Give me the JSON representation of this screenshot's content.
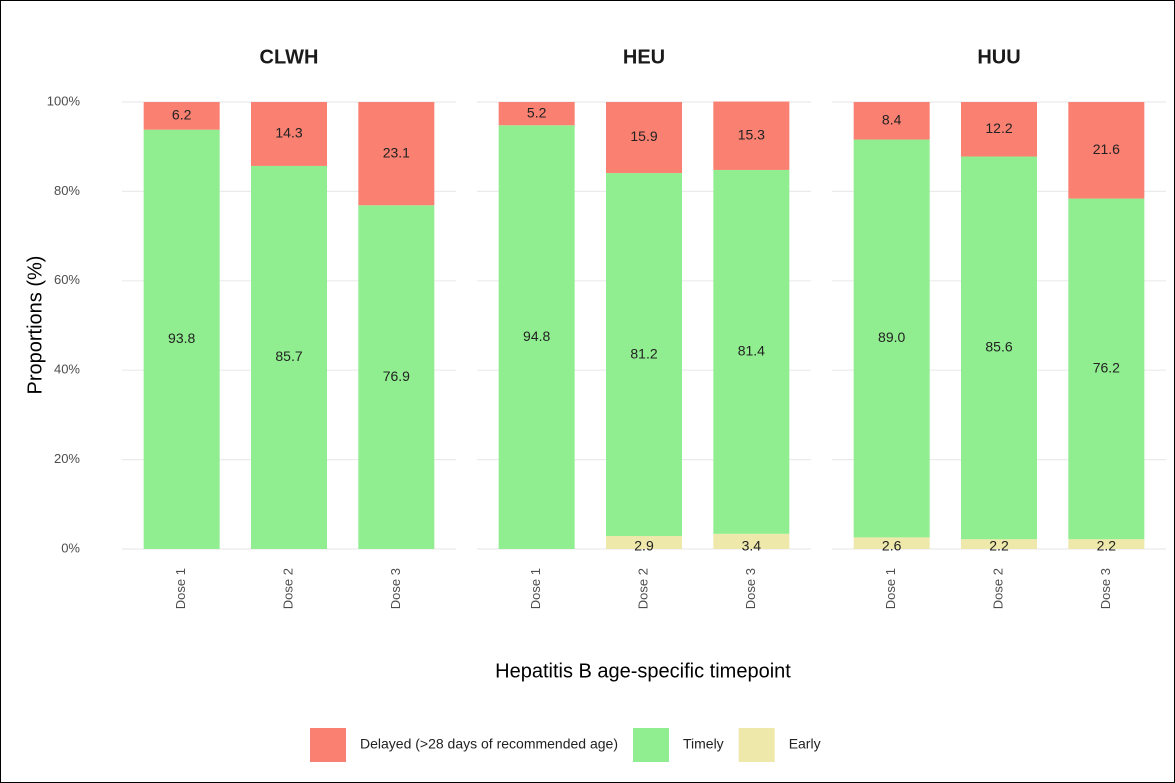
{
  "chart_data": {
    "type": "bar",
    "stacked": true,
    "ylabel": "Proportions (%)",
    "xlabel": "Hepatitis B age-specific timepoint",
    "ylim": [
      0,
      100
    ],
    "yticks": [
      {
        "value": 0,
        "label": "0%"
      },
      {
        "value": 20,
        "label": "20%"
      },
      {
        "value": 40,
        "label": "40%"
      },
      {
        "value": 60,
        "label": "60%"
      },
      {
        "value": 80,
        "label": "80%"
      },
      {
        "value": 100,
        "label": "100%"
      }
    ],
    "grid": true,
    "legend": "bottom",
    "series": [
      {
        "name": "Delayed (>28 days of recommended age)",
        "color": "#fa8072"
      },
      {
        "name": "Timely",
        "color": "#90ee90"
      },
      {
        "name": "Early",
        "color": "#eee8aa"
      }
    ],
    "facets": [
      {
        "title": "CLWH",
        "categories": [
          "Dose 1",
          "Dose 2",
          "Dose 3"
        ],
        "values": [
          [
            6.2,
            14.3,
            23.1
          ],
          [
            93.8,
            85.7,
            76.9
          ],
          [
            0,
            0,
            0
          ]
        ]
      },
      {
        "title": "HEU",
        "categories": [
          "Dose 1",
          "Dose 2",
          "Dose 3"
        ],
        "values": [
          [
            5.2,
            15.9,
            15.3
          ],
          [
            94.8,
            81.2,
            81.4
          ],
          [
            0,
            2.9,
            3.4
          ]
        ]
      },
      {
        "title": "HUU",
        "categories": [
          "Dose 1",
          "Dose 2",
          "Dose 3"
        ],
        "values": [
          [
            8.4,
            12.2,
            21.6
          ],
          [
            89,
            85.6,
            76.2
          ],
          [
            2.6,
            2.2,
            2.2
          ]
        ],
        "value_labels": [
          null,
          [
            "89.0",
            "85.6",
            "76.2"
          ],
          null
        ]
      }
    ]
  }
}
